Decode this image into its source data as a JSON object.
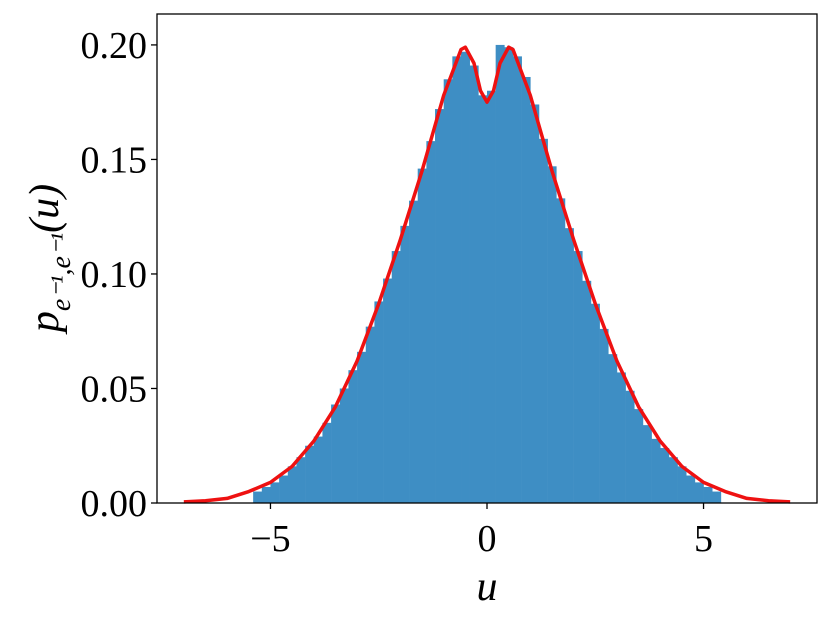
{
  "chart_data": [
    {
      "type": "histogram",
      "xlabel": "u",
      "ylabel": [
        "p",
        "e⁻¹,e⁻¹",
        "(u)"
      ],
      "xlim": [
        -7.62,
        7.62
      ],
      "ylim": [
        0,
        0.2135
      ],
      "xticks": [
        {
          "value": -5,
          "label": "−5"
        },
        0,
        5
      ],
      "yticks": [
        {
          "value": 0,
          "label": "0.00"
        },
        {
          "value": 0.05,
          "label": "0.05"
        },
        {
          "value": 0.1,
          "label": "0.10"
        },
        {
          "value": 0.15,
          "label": "0.15"
        },
        {
          "value": 0.2,
          "label": "0.20"
        }
      ],
      "color": "#3e8ec4",
      "bins": [
        -5.4,
        -5.2,
        -5.0,
        -4.8,
        -4.6,
        -4.4,
        -4.2,
        -4.0,
        -3.8,
        -3.6,
        -3.4,
        -3.2,
        -3.0,
        -2.8,
        -2.6,
        -2.4,
        -2.2,
        -2.0,
        -1.8,
        -1.6,
        -1.4,
        -1.2,
        -1.0,
        -0.8,
        -0.6,
        -0.4,
        -0.2,
        0.0,
        0.2,
        0.4,
        0.6,
        0.8,
        1.0,
        1.2,
        1.4,
        1.6,
        1.8,
        2.0,
        2.2,
        2.4,
        2.6,
        2.8,
        3.0,
        3.2,
        3.4,
        3.6,
        3.8,
        4.0,
        4.2,
        4.4,
        4.6,
        4.8,
        5.0,
        5.2,
        5.4
      ],
      "values": [
        0.005,
        0.007,
        0.009,
        0.012,
        0.016,
        0.02,
        0.025,
        0.029,
        0.035,
        0.043,
        0.05,
        0.058,
        0.066,
        0.077,
        0.088,
        0.098,
        0.11,
        0.121,
        0.132,
        0.146,
        0.158,
        0.172,
        0.185,
        0.195,
        0.197,
        0.191,
        0.178,
        0.18,
        0.2,
        0.199,
        0.195,
        0.186,
        0.174,
        0.159,
        0.147,
        0.133,
        0.12,
        0.11,
        0.097,
        0.087,
        0.076,
        0.065,
        0.057,
        0.049,
        0.041,
        0.034,
        0.028,
        0.024,
        0.02,
        0.016,
        0.012,
        0.009,
        0.007,
        0.005
      ]
    },
    {
      "type": "line",
      "color": "#ee1111",
      "x": [
        -7,
        -6.5,
        -6,
        -5.5,
        -5,
        -4.5,
        -4,
        -3.5,
        -3,
        -2.5,
        -2,
        -1.5,
        -1,
        -0.6,
        -0.5,
        -0.3,
        -0.15,
        0,
        0.15,
        0.3,
        0.5,
        0.6,
        1,
        1.5,
        2,
        2.5,
        3,
        3.5,
        4,
        4.5,
        5,
        5.5,
        6,
        6.5,
        7
      ],
      "values": [
        0.0005,
        0.001,
        0.002,
        0.005,
        0.009,
        0.016,
        0.027,
        0.042,
        0.062,
        0.087,
        0.115,
        0.145,
        0.178,
        0.198,
        0.199,
        0.192,
        0.18,
        0.175,
        0.18,
        0.192,
        0.199,
        0.198,
        0.178,
        0.145,
        0.115,
        0.087,
        0.062,
        0.042,
        0.027,
        0.016,
        0.009,
        0.005,
        0.002,
        0.001,
        0.0005
      ]
    }
  ]
}
